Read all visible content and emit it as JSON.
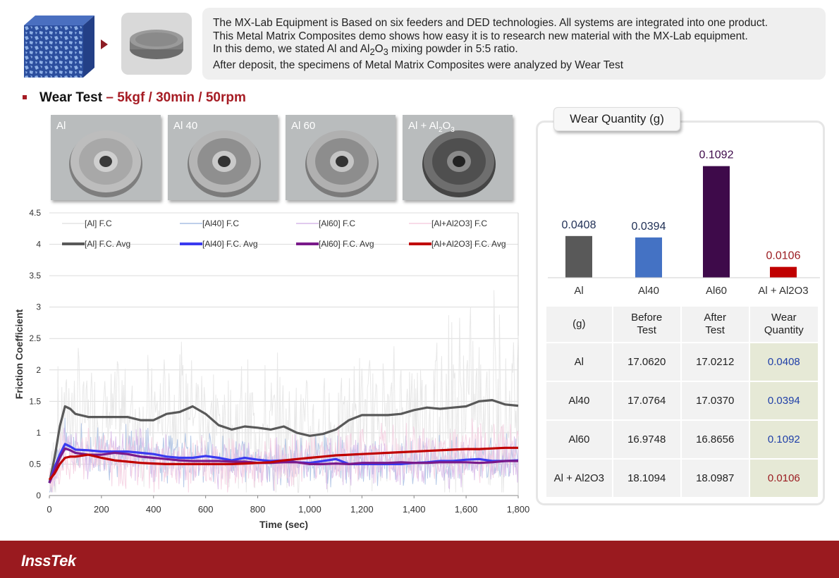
{
  "intro": {
    "line1": "The MX-Lab Equipment is Based on six feeders and DED technologies. All systems are integrated into one product.",
    "line2": "This Metal Matrix Composites demo shows how easy it is to research new material with the MX-Lab equipment.",
    "line3_pre": "In this demo, we stated Al and Al",
    "line3_sub1": "2",
    "line3_mid": "O",
    "line3_sub2": "3",
    "line3_post": " mixing powder in 5:5 ratio.",
    "line4": "After deposit, the specimens of Metal Matrix Composites were analyzed by Wear Test"
  },
  "section": {
    "title": "Wear Test",
    "dash": "–",
    "conditions": "5kgf / 30min / 50rpm"
  },
  "specimens": {
    "s1": "Al",
    "s2": "Al 40",
    "s3": "Al 60",
    "s4_pre": "Al + Al",
    "s4_sub1": "2",
    "s4_mid": "O",
    "s4_sub2": "3"
  },
  "colors": {
    "al": "#595959",
    "al40": "#4472c4",
    "al60": "#3e0a4a",
    "alal2o3": "#c00000",
    "accent": "#a61c24",
    "footer": "#9a1a1f"
  },
  "chart_data": [
    {
      "type": "line",
      "xlabel": "Time (sec)",
      "ylabel": "Friction Coefficient",
      "xlim": [
        0,
        1800
      ],
      "ylim": [
        0,
        4.5
      ],
      "xticks": [
        "0",
        "200",
        "400",
        "600",
        "800",
        "1,000",
        "1,200",
        "1,400",
        "1,600",
        "1,800"
      ],
      "yticks": [
        "0",
        "0.5",
        "1",
        "1.5",
        "2",
        "2.5",
        "3",
        "3.5",
        "4",
        "4.5"
      ],
      "legend": "top",
      "grid": "horizontal",
      "series": [
        {
          "name": "[Al] F.C",
          "color": "#e4e4e4",
          "kind": "raw",
          "base": 1.45,
          "spread": 0.9
        },
        {
          "name": "[Al40] F.C",
          "color": "#a9bfe3",
          "kind": "raw",
          "base": 0.7,
          "spread": 0.35
        },
        {
          "name": "[Al60] F.C",
          "color": "#d7b8e8",
          "kind": "raw",
          "base": 0.65,
          "spread": 0.35
        },
        {
          "name": "[Al+Al2O3]  F.C",
          "color": "#f5cfe0",
          "kind": "raw",
          "base": 0.75,
          "spread": 0.4
        },
        {
          "name": "[Al]  F.C. Avg",
          "color": "#595959",
          "kind": "avg",
          "x": [
            0,
            20,
            40,
            60,
            80,
            100,
            150,
            200,
            250,
            300,
            350,
            400,
            450,
            500,
            550,
            600,
            650,
            700,
            750,
            800,
            850,
            900,
            950,
            1000,
            1050,
            1100,
            1150,
            1200,
            1250,
            1300,
            1350,
            1400,
            1450,
            1500,
            1550,
            1600,
            1650,
            1700,
            1750,
            1800
          ],
          "y": [
            0.2,
            0.6,
            1.1,
            1.42,
            1.38,
            1.3,
            1.25,
            1.25,
            1.25,
            1.25,
            1.2,
            1.2,
            1.3,
            1.33,
            1.42,
            1.3,
            1.12,
            1.05,
            1.1,
            1.08,
            1.05,
            1.1,
            1.0,
            0.95,
            0.98,
            1.05,
            1.2,
            1.28,
            1.28,
            1.28,
            1.3,
            1.36,
            1.4,
            1.38,
            1.4,
            1.42,
            1.5,
            1.52,
            1.45,
            1.43
          ]
        },
        {
          "name": "[Al40]  F.C. Avg",
          "color": "#3a3af0",
          "kind": "avg",
          "x": [
            0,
            20,
            40,
            60,
            80,
            100,
            150,
            200,
            250,
            300,
            350,
            400,
            450,
            500,
            550,
            600,
            650,
            700,
            750,
            800,
            850,
            900,
            950,
            1000,
            1050,
            1100,
            1150,
            1200,
            1250,
            1300,
            1350,
            1400,
            1450,
            1500,
            1550,
            1600,
            1650,
            1700,
            1750,
            1800
          ],
          "y": [
            0.2,
            0.45,
            0.65,
            0.82,
            0.78,
            0.73,
            0.72,
            0.7,
            0.7,
            0.7,
            0.68,
            0.66,
            0.62,
            0.6,
            0.6,
            0.63,
            0.6,
            0.56,
            0.6,
            0.57,
            0.55,
            0.56,
            0.53,
            0.52,
            0.55,
            0.58,
            0.5,
            0.5,
            0.5,
            0.5,
            0.5,
            0.52,
            0.53,
            0.55,
            0.55,
            0.57,
            0.58,
            0.55,
            0.55,
            0.56
          ]
        },
        {
          "name": "[Al60]  F.C. Avg",
          "color": "#7a1a8a",
          "kind": "avg",
          "x": [
            0,
            20,
            40,
            60,
            80,
            100,
            150,
            200,
            250,
            300,
            350,
            400,
            450,
            500,
            550,
            600,
            650,
            700,
            750,
            800,
            850,
            900,
            950,
            1000,
            1050,
            1100,
            1150,
            1200,
            1250,
            1300,
            1350,
            1400,
            1450,
            1500,
            1550,
            1600,
            1650,
            1700,
            1750,
            1800
          ],
          "y": [
            0.2,
            0.4,
            0.6,
            0.75,
            0.72,
            0.68,
            0.65,
            0.65,
            0.68,
            0.66,
            0.62,
            0.6,
            0.58,
            0.56,
            0.55,
            0.55,
            0.55,
            0.54,
            0.54,
            0.52,
            0.52,
            0.53,
            0.53,
            0.5,
            0.5,
            0.51,
            0.5,
            0.52,
            0.52,
            0.52,
            0.53,
            0.52,
            0.52,
            0.53,
            0.53,
            0.53,
            0.52,
            0.53,
            0.55,
            0.55
          ]
        },
        {
          "name": "[Al+Al2O3] F.C. Avg",
          "color": "#c00000",
          "kind": "avg",
          "x": [
            0,
            20,
            40,
            60,
            80,
            100,
            150,
            200,
            250,
            300,
            350,
            400,
            450,
            500,
            550,
            600,
            650,
            700,
            750,
            800,
            850,
            900,
            950,
            1000,
            1050,
            1100,
            1150,
            1200,
            1250,
            1300,
            1350,
            1400,
            1450,
            1500,
            1550,
            1600,
            1650,
            1700,
            1750,
            1800
          ],
          "y": [
            0.25,
            0.35,
            0.5,
            0.6,
            0.62,
            0.62,
            0.65,
            0.6,
            0.56,
            0.54,
            0.52,
            0.51,
            0.5,
            0.5,
            0.5,
            0.5,
            0.5,
            0.5,
            0.51,
            0.52,
            0.53,
            0.56,
            0.58,
            0.6,
            0.62,
            0.64,
            0.65,
            0.66,
            0.67,
            0.68,
            0.69,
            0.7,
            0.71,
            0.72,
            0.73,
            0.74,
            0.74,
            0.75,
            0.76,
            0.76
          ]
        }
      ]
    },
    {
      "type": "bar",
      "title": "Wear Quantity (g)",
      "categories": [
        "Al",
        "Al40",
        "Al60",
        "Al + Al2O3"
      ],
      "values": [
        0.0408,
        0.0394,
        0.1092,
        0.0106
      ],
      "labels": [
        "0.0408",
        "0.0394",
        "0.1092",
        "0.0106"
      ],
      "colors": [
        "#595959",
        "#4472c4",
        "#3e0a4a",
        "#c00000"
      ],
      "ylim": [
        0,
        0.12
      ]
    },
    {
      "type": "table",
      "headers": [
        "(g)",
        "Before Test",
        "After Test",
        "Wear Quantity"
      ],
      "rows": [
        [
          "Al",
          "17.0620",
          "17.0212",
          "0.0408"
        ],
        [
          "Al40",
          "17.0764",
          "17.0370",
          "0.0394"
        ],
        [
          "Al60",
          "16.9748",
          "16.8656",
          "0.1092"
        ],
        [
          "Al + Al2O3",
          "18.1094",
          "18.0987",
          "0.0106"
        ]
      ],
      "value_colors": [
        "#1f3fa8",
        "#1f3fa8",
        "#1f3fa8",
        "#9a1a1f"
      ]
    }
  ],
  "footer": {
    "logo": "InssTek"
  }
}
